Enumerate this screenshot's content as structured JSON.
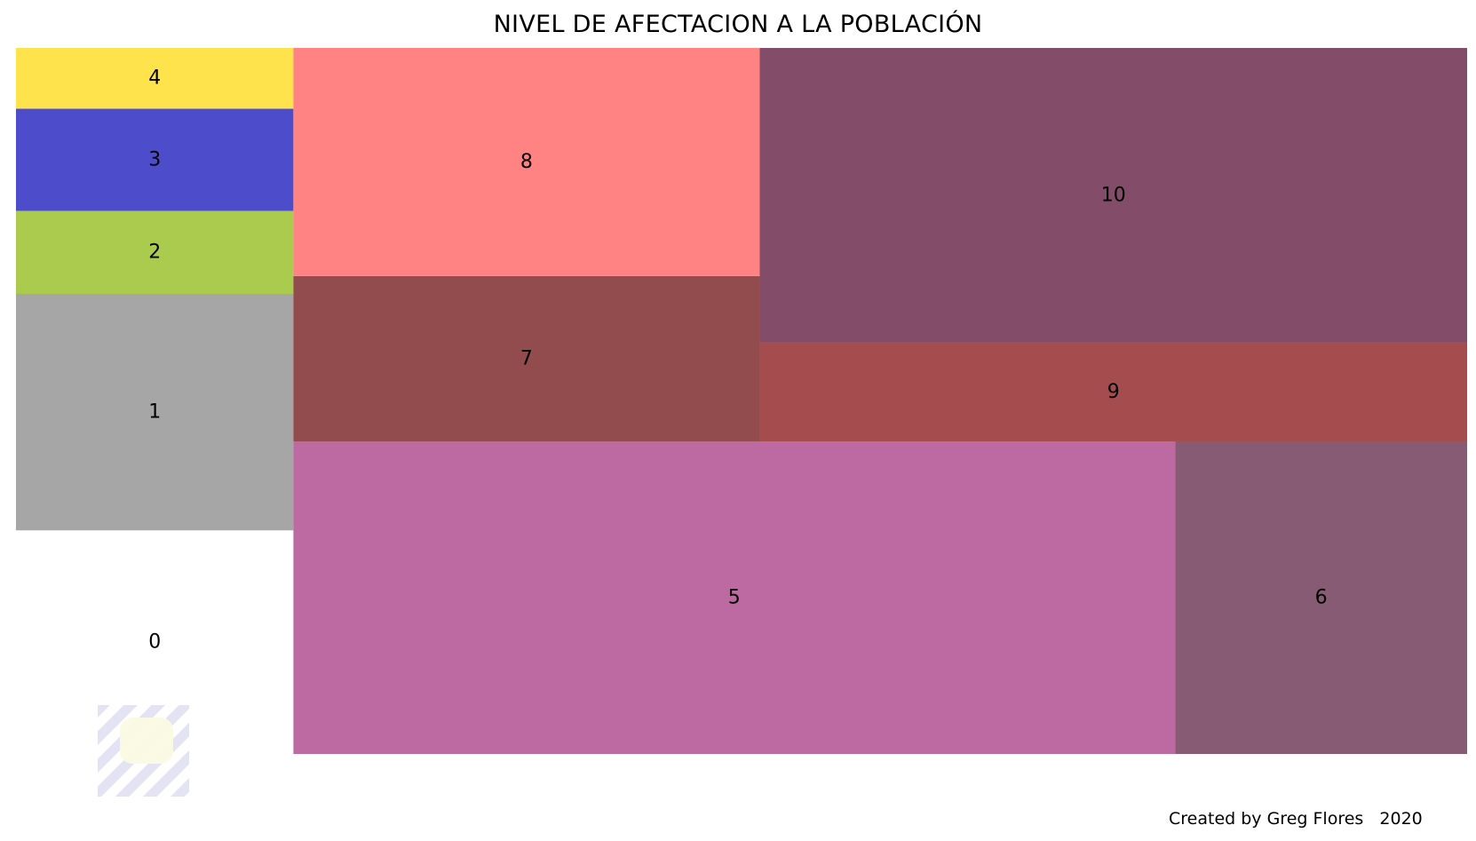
{
  "chart_data": {
    "type": "treemap",
    "title": "NIVEL DE AFECTACION A LA POBLACIÓN",
    "credit": "Created by Greg Flores   2020",
    "watermark": "faded-logo",
    "tiles": [
      {
        "label": "0",
        "value": 7.0,
        "color": "#ffffff"
      },
      {
        "label": "1",
        "value": 7.4,
        "color": "#a6a6a6"
      },
      {
        "label": "2",
        "value": 2.6,
        "color": "#aacb4e"
      },
      {
        "label": "3",
        "value": 3.2,
        "color": "#4d4dcc"
      },
      {
        "label": "4",
        "value": 1.9,
        "color": "#ffe34d"
      },
      {
        "label": "5",
        "value": 31.1,
        "color": "#be6aa2"
      },
      {
        "label": "6",
        "value": 10.3,
        "color": "#875b74"
      },
      {
        "label": "7",
        "value": 8.7,
        "color": "#934c4d"
      },
      {
        "label": "8",
        "value": 12.0,
        "color": "#ff8383"
      },
      {
        "label": "9",
        "value": 7.9,
        "color": "#a54d4e"
      },
      {
        "label": "10",
        "value": 23.5,
        "color": "#834c69"
      }
    ]
  }
}
